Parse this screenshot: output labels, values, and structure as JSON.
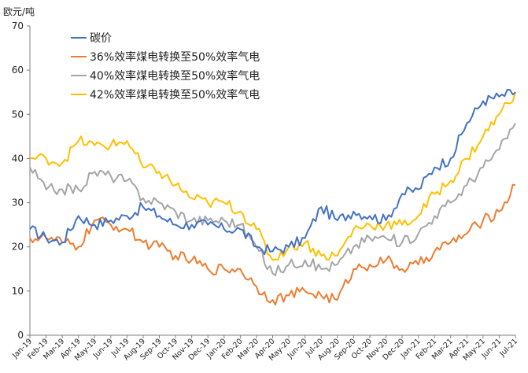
{
  "chart_data": {
    "type": "line",
    "unit_label": "欧元/吨",
    "ylim": [
      0,
      70
    ],
    "yticks": [
      0,
      10,
      20,
      30,
      40,
      50,
      60,
      70
    ],
    "x_tick_labels": [
      "Jan-19",
      "Feb-19",
      "Mar-19",
      "Apr-19",
      "May-19",
      "Jun-19",
      "Jul-19",
      "Aug-19",
      "Sep-19",
      "Oct-19",
      "Nov-19",
      "Dec-19",
      "Jan-20",
      "Feb-20",
      "Mar-20",
      "Apr-20",
      "May-20",
      "Jun-20",
      "Jul-20",
      "Aug-20",
      "Sep-20",
      "Oct-20",
      "Nov-20",
      "Dec-20",
      "Jan-21",
      "Feb-21",
      "Mar-21",
      "Apr-21",
      "May-21",
      "Jun-21",
      "Jul-21"
    ],
    "x": [
      "2019-01",
      "2019-02",
      "2019-03",
      "2019-04",
      "2019-05",
      "2019-06",
      "2019-07",
      "2019-08",
      "2019-09",
      "2019-10",
      "2019-11",
      "2019-12",
      "2020-01",
      "2020-02",
      "2020-03",
      "2020-04",
      "2020-05",
      "2020-06",
      "2020-07",
      "2020-08",
      "2020-09",
      "2020-10",
      "2020-11",
      "2020-12",
      "2021-01",
      "2021-02",
      "2021-03",
      "2021-04",
      "2021-05",
      "2021-06",
      "2021-07"
    ],
    "legend_position": "top-left",
    "grid": false,
    "series": [
      {
        "name": "碳价",
        "color": "#4472C4",
        "values": [
          24,
          22,
          21,
          27,
          25,
          26,
          27,
          29,
          27,
          25,
          25,
          25,
          24,
          24,
          20,
          19,
          20,
          22,
          29,
          26,
          28,
          27,
          26,
          32,
          33,
          38,
          40,
          48,
          53,
          54,
          55
        ]
      },
      {
        "name": "36%效率煤电转换至50%效率气电",
        "color": "#ED7D31",
        "values": [
          22,
          22,
          21,
          20,
          26,
          25,
          24,
          21,
          20,
          18,
          17,
          15,
          15,
          15,
          11,
          8,
          9,
          10,
          9,
          8,
          15,
          16,
          17,
          15,
          16,
          19,
          21,
          23,
          26,
          28,
          34
        ]
      },
      {
        "name": "40%效率煤电转换至50%效率气电",
        "color": "#A5A5A5",
        "values": [
          38,
          33,
          33,
          33,
          37,
          36,
          35,
          31,
          30,
          28,
          26,
          26,
          26,
          25,
          20,
          14,
          16,
          17,
          15,
          16,
          20,
          22,
          22,
          21,
          23,
          27,
          30,
          34,
          38,
          42,
          48
        ]
      },
      {
        "name": "42%效率煤电转换至50%效率气电",
        "color": "#FFC000",
        "values": [
          40,
          40,
          39,
          44,
          43,
          43,
          44,
          38,
          37,
          34,
          31,
          30,
          30,
          28,
          24,
          17,
          20,
          21,
          18,
          18,
          24,
          25,
          25,
          25,
          27,
          32,
          35,
          40,
          45,
          50,
          55
        ]
      }
    ]
  }
}
